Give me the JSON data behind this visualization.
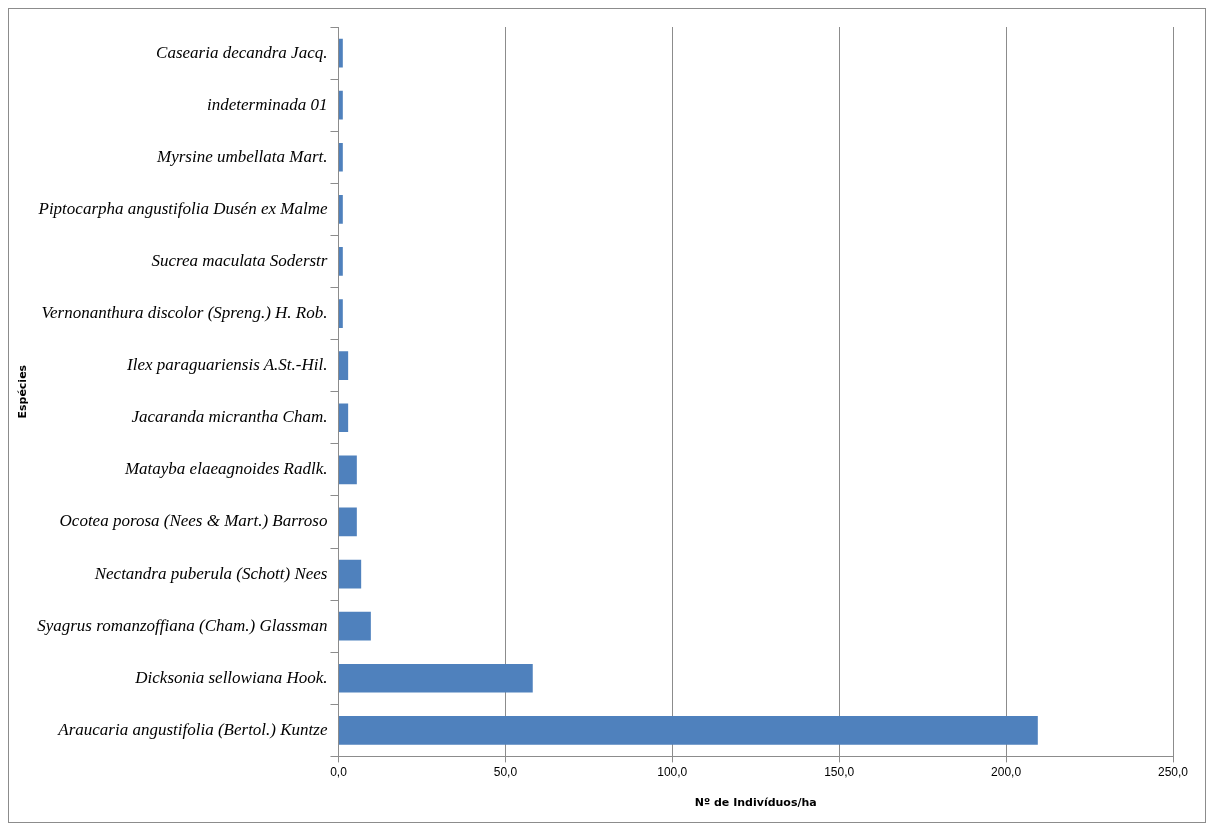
{
  "chart_data": {
    "type": "bar",
    "orientation": "horizontal",
    "xlabel": "Nº de Indivíduos/ha",
    "ylabel": "Espécies",
    "categories": [
      "Casearia decandra Jacq.",
      "indeterminada 01",
      "Myrsine umbellata Mart.",
      "Piptocarpha angustifolia Dusén ex Malme",
      "Sucrea maculata Soderstr",
      "Vernonanthura discolor (Spreng.) H. Rob.",
      "Ilex paraguariensis A.St.-Hil.",
      "Jacaranda micrantha Cham.",
      "Matayba elaeagnoides Radlk.",
      "Ocotea porosa (Nees & Mart.) Barroso",
      "Nectandra puberula (Schott) Nees",
      "Syagrus romanzoffiana (Cham.) Glassman",
      "Dicksonia sellowiana Hook.",
      "Araucaria angustifolia (Bertol.) Kuntze"
    ],
    "values": [
      1.3,
      1.3,
      1.3,
      1.3,
      1.3,
      1.3,
      2.9,
      2.9,
      5.5,
      5.5,
      6.8,
      9.7,
      58.2,
      209.5
    ],
    "color": "#4f81bd",
    "xlim": [
      0,
      250
    ],
    "xticks": [
      {
        "value": 0,
        "label": "0,0"
      },
      {
        "value": 50,
        "label": "50,0"
      },
      {
        "value": 100,
        "label": "100,0"
      },
      {
        "value": 150,
        "label": "150,0"
      },
      {
        "value": 200,
        "label": "200,0"
      },
      {
        "value": 250,
        "label": "250,0"
      }
    ],
    "grid": "x",
    "legend": false
  }
}
